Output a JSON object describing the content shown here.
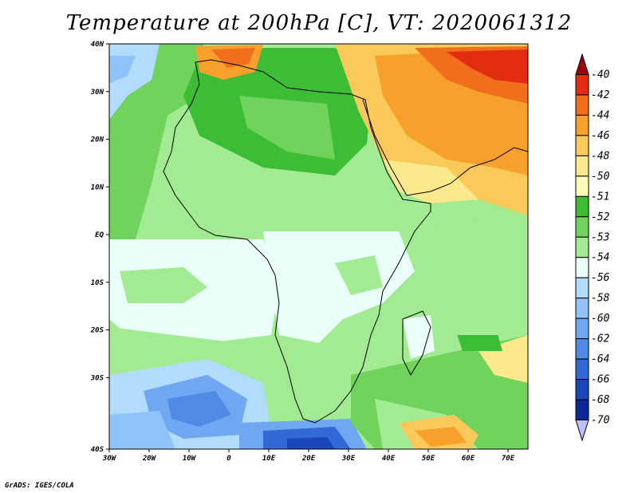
{
  "title": "Temperature at 200hPa [C], VT: 2020061312",
  "credit": "GrADS: IGES/COLA",
  "map": {
    "lon_labels": [
      "30W",
      "20W",
      "10W",
      "0",
      "10E",
      "20E",
      "30E",
      "40E",
      "50E",
      "60E",
      "70E"
    ],
    "lat_labels": [
      "40N",
      "30N",
      "20N",
      "10N",
      "EQ",
      "10S",
      "20S",
      "30S",
      "40S"
    ]
  },
  "colorbar": {
    "labels": [
      "-40",
      "-42",
      "-44",
      "-46",
      "-48",
      "-50",
      "-51",
      "-52",
      "-53",
      "-54",
      "-56",
      "-58",
      "-60",
      "-62",
      "-64",
      "-66",
      "-68",
      "-70"
    ],
    "colors": [
      "#a0000c",
      "#e32d11",
      "#f06e1c",
      "#f7a12c",
      "#fbc85a",
      "#fde98d",
      "#fffcb8",
      "#3dbd35",
      "#6fd35c",
      "#a2eb92",
      "#eafff9",
      "#b1dcfc",
      "#8fc3f9",
      "#6fa7f1",
      "#4f8ae5",
      "#3269d4",
      "#1b47bb",
      "#0c2896",
      "#bfbfff"
    ]
  }
}
